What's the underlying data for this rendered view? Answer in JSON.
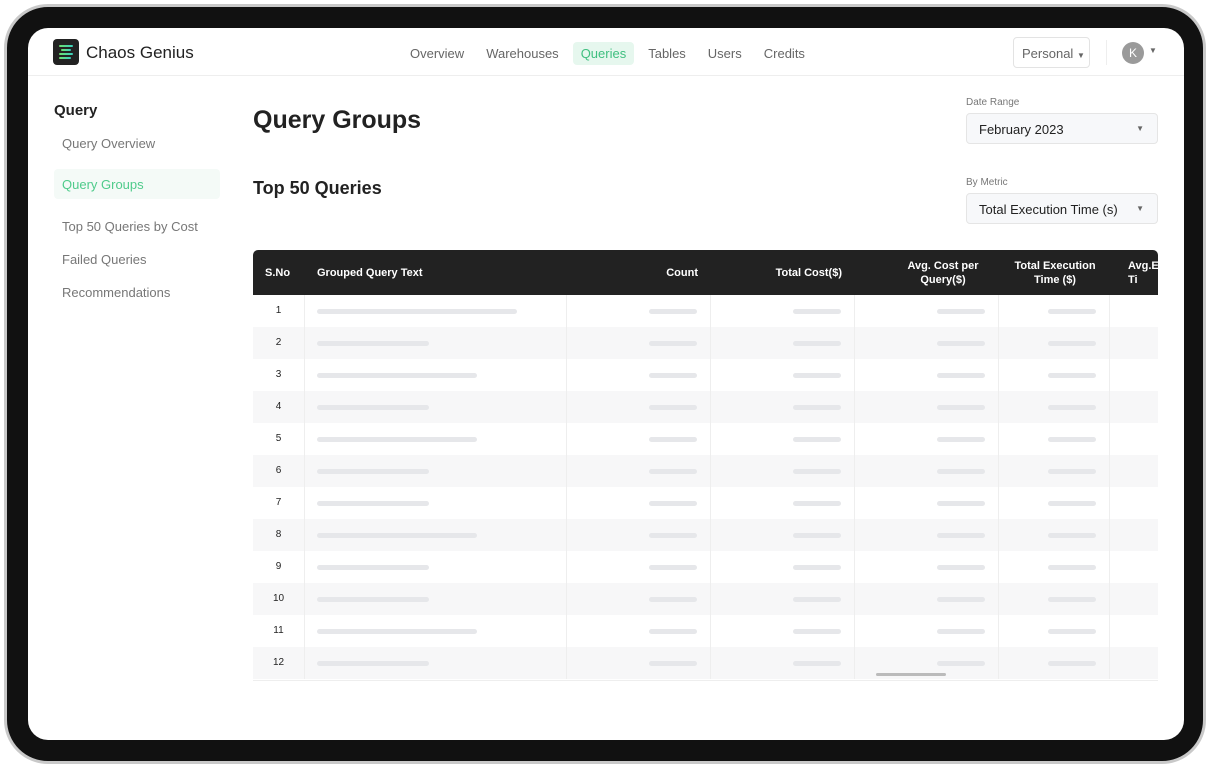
{
  "app": {
    "name": "Chaos Genius"
  },
  "nav": {
    "items": [
      "Overview",
      "Warehouses",
      "Queries",
      "Tables",
      "Users",
      "Credits"
    ],
    "active": "Queries"
  },
  "account": {
    "workspace": "Personal",
    "avatar_initial": "K"
  },
  "sidebar": {
    "title": "Query",
    "items": [
      "Query Overview",
      "Query Groups",
      "Top 50 Queries by Cost",
      "Failed Queries",
      "Recommendations"
    ],
    "active": "Query Groups"
  },
  "page": {
    "title": "Query Groups",
    "section_title": "Top 50 Queries"
  },
  "filters": {
    "date_range_label": "Date Range",
    "date_range_value": "February 2023",
    "metric_label": "By Metric",
    "metric_value": "Total Execution Time (s)"
  },
  "table": {
    "columns": [
      "S.No",
      "Grouped Query Text",
      "Count",
      "Total Cost($)",
      "Avg. Cost per Query($)",
      "Total Execution Time ($)",
      "Avg.E Ti"
    ],
    "rows": [
      "1",
      "2",
      "3",
      "4",
      "5",
      "6",
      "7",
      "8",
      "9",
      "10",
      "11",
      "12"
    ]
  },
  "colors": {
    "accent": "#3fbf7f",
    "header_bg": "#222222"
  }
}
